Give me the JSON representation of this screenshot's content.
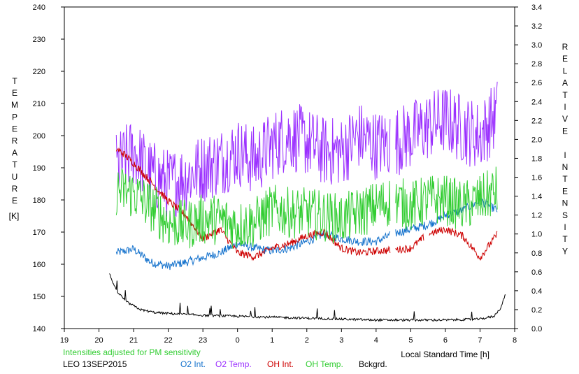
{
  "chart_data": {
    "type": "line",
    "ylabel_left": "TEMPERATURE",
    "ylabel_left_unit": "[K]",
    "ylabel_right": "RELATIVE INTENSITY",
    "xlabel": "Local Standard Time [h]",
    "note": "Intensities adjusted for PM sensitivity",
    "station": "LEO 13SEP2015",
    "x_ticks": [
      19,
      20,
      21,
      22,
      23,
      0,
      1,
      2,
      3,
      4,
      5,
      6,
      7,
      8
    ],
    "x_tick_labels": [
      "19",
      "20",
      "21",
      "22",
      "23",
      "0",
      "1",
      "2",
      "3",
      "4",
      "5",
      "6",
      "7",
      "8"
    ],
    "xlim": [
      19,
      32
    ],
    "ylim_left": [
      140,
      240
    ],
    "y_ticks_left": [
      140,
      150,
      160,
      170,
      180,
      190,
      200,
      210,
      220,
      230,
      240
    ],
    "ylim_right": [
      0,
      3.4
    ],
    "y_ticks_right": [
      "0.0",
      "0.2",
      "0.4",
      "0.6",
      "0.8",
      "1.0",
      "1.2",
      "1.4",
      "1.6",
      "1.8",
      "2.0",
      "2.2",
      "2.4",
      "2.6",
      "2.8",
      "3.0",
      "3.2",
      "3.4"
    ],
    "grid": false,
    "legend_position": "bottom",
    "series": [
      {
        "name": "O2 Int.",
        "axis": "right",
        "color": "#1874cd",
        "x": [
          20.5,
          21,
          21.5,
          22,
          22.5,
          23,
          23.5,
          24,
          24.5,
          25,
          25.5,
          26,
          26.5,
          27,
          27.5,
          28,
          28.5,
          29,
          29.5,
          29.8,
          30,
          30.5,
          31,
          31.5
        ],
        "y": [
          0.8,
          0.84,
          0.7,
          0.66,
          0.7,
          0.75,
          0.8,
          0.9,
          0.85,
          0.82,
          0.85,
          0.92,
          1.0,
          0.95,
          0.92,
          0.92,
          1.0,
          1.05,
          1.1,
          1.15,
          1.2,
          1.25,
          1.35,
          1.25
        ]
      },
      {
        "name": "O2 Temp.",
        "axis": "left",
        "color": "#9b30ff",
        "x": [
          20.5,
          21,
          21.5,
          22,
          22.5,
          23,
          23.5,
          24,
          24.5,
          25,
          25.5,
          26,
          26.5,
          27,
          27.5,
          28,
          28.5,
          29,
          29.5,
          30,
          30.5,
          31,
          31.5
        ],
        "y": [
          190,
          195,
          188,
          185,
          187,
          190,
          192,
          195,
          192,
          197,
          200,
          198,
          195,
          195,
          200,
          197,
          198,
          200,
          203,
          205,
          202,
          200,
          207
        ]
      },
      {
        "name": "OH Int.",
        "axis": "right",
        "color": "#cd0000",
        "x": [
          20.5,
          20.7,
          21,
          21.5,
          22,
          22.5,
          23,
          23.5,
          24,
          24.5,
          25,
          25.5,
          26,
          26.5,
          27,
          27.5,
          28,
          28.5,
          29,
          29.5,
          30,
          30.5,
          31,
          31.5
        ],
        "y": [
          1.9,
          1.85,
          1.75,
          1.55,
          1.35,
          1.2,
          0.95,
          1.05,
          0.8,
          0.76,
          0.85,
          0.9,
          0.98,
          1.02,
          0.85,
          0.8,
          0.82,
          0.83,
          0.85,
          1.0,
          1.05,
          0.98,
          0.75,
          1.0
        ]
      },
      {
        "name": "OH Temp.",
        "axis": "left",
        "color": "#32cd32",
        "x": [
          20.5,
          21,
          21.5,
          22,
          22.5,
          23,
          23.5,
          24,
          24.5,
          25,
          25.5,
          26,
          26.5,
          27,
          27.5,
          28,
          28.5,
          29,
          29.5,
          30,
          30.5,
          31,
          31.5
        ],
        "y": [
          183,
          182,
          178,
          173,
          172,
          174,
          174,
          172,
          173,
          177,
          176,
          176,
          175,
          174,
          176,
          178,
          180,
          178,
          180,
          180,
          178,
          180,
          183
        ]
      },
      {
        "name": "Bckgrd.",
        "axis": "right",
        "color": "#000000",
        "x": [
          20.3,
          20.5,
          20.8,
          21.2,
          21.6,
          22,
          23,
          24,
          25,
          26,
          27,
          28,
          29,
          30,
          31,
          31.4,
          31.6,
          31.75
        ],
        "y": [
          0.58,
          0.4,
          0.28,
          0.2,
          0.17,
          0.16,
          0.14,
          0.13,
          0.12,
          0.11,
          0.1,
          0.09,
          0.09,
          0.09,
          0.1,
          0.13,
          0.22,
          0.38
        ]
      }
    ]
  },
  "legend": {
    "station": "LEO 13SEP2015",
    "o2_int": "O2 Int.",
    "o2_temp": "O2 Temp.",
    "oh_int": "OH Int.",
    "oh_temp": "OH Temp.",
    "bckgrd": "Bckgrd."
  },
  "labels": {
    "note": "Intensities adjusted for PM sensitivity",
    "xlabel": "Local Standard Time [h]",
    "left_axis": "TEMPERATURE",
    "left_unit": "[K]",
    "right_axis": "RELATIVE INTENSITY"
  },
  "colors": {
    "o2_int": "#1874cd",
    "o2_temp": "#9b30ff",
    "oh_int": "#cd0000",
    "oh_temp": "#32cd32",
    "bckgrd": "#000000",
    "note": "#32cd32"
  }
}
